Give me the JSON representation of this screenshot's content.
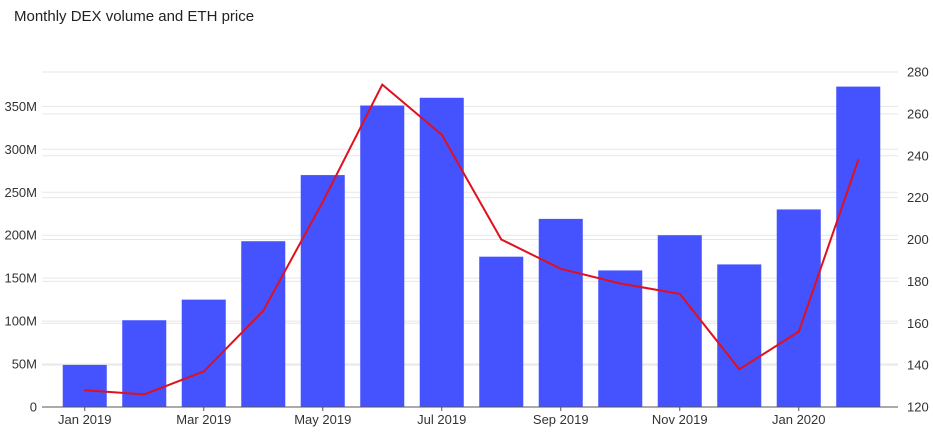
{
  "title": "Monthly DEX volume and ETH price",
  "colors": {
    "bar": "#4553ff",
    "line": "#e0101e",
    "grid": "#e7e7e7",
    "axis": "#555555"
  },
  "chart_data": {
    "type": "bar",
    "title": "Monthly DEX volume and ETH price",
    "xlabel": "",
    "ylabel": "",
    "grid": true,
    "legend": "none",
    "categories": [
      "Jan 2019",
      "Feb 2019",
      "Mar 2019",
      "Apr 2019",
      "May 2019",
      "Jun 2019",
      "Jul 2019",
      "Aug 2019",
      "Sep 2019",
      "Oct 2019",
      "Nov 2019",
      "Dec 2019",
      "Jan 2020",
      "Feb 2020"
    ],
    "x_tick_labels": [
      "Jan 2019",
      "Mar 2019",
      "May 2019",
      "Jul 2019",
      "Sep 2019",
      "Nov 2019",
      "Jan 2020"
    ],
    "x_tick_categories": [
      "Jan 2019",
      "Mar 2019",
      "May 2019",
      "Jul 2019",
      "Sep 2019",
      "Nov 2019",
      "Jan 2020"
    ],
    "series": [
      {
        "type": "bar",
        "axis": "left",
        "values": [
          49000000,
          101000000,
          125000000,
          193000000,
          270000000,
          351000000,
          360000000,
          175000000,
          219000000,
          159000000,
          200000000,
          166000000,
          230000000,
          373000000
        ]
      },
      {
        "type": "line",
        "axis": "right",
        "values": [
          128,
          126,
          137,
          166,
          218,
          274,
          250,
          200,
          186,
          179,
          174,
          138,
          156,
          238
        ]
      }
    ],
    "y_left": {
      "lim": [
        0,
        390000000
      ],
      "ticks": [
        0,
        50000000,
        100000000,
        150000000,
        200000000,
        250000000,
        300000000,
        350000000
      ],
      "tick_labels": [
        "0",
        "50M",
        "100M",
        "150M",
        "200M",
        "250M",
        "300M",
        "350M"
      ]
    },
    "y_right": {
      "lim": [
        120,
        280
      ],
      "ticks": [
        120,
        140,
        160,
        180,
        200,
        220,
        240,
        260,
        280
      ],
      "tick_labels": [
        "120",
        "140",
        "160",
        "180",
        "200",
        "220",
        "240",
        "260",
        "280"
      ]
    }
  }
}
